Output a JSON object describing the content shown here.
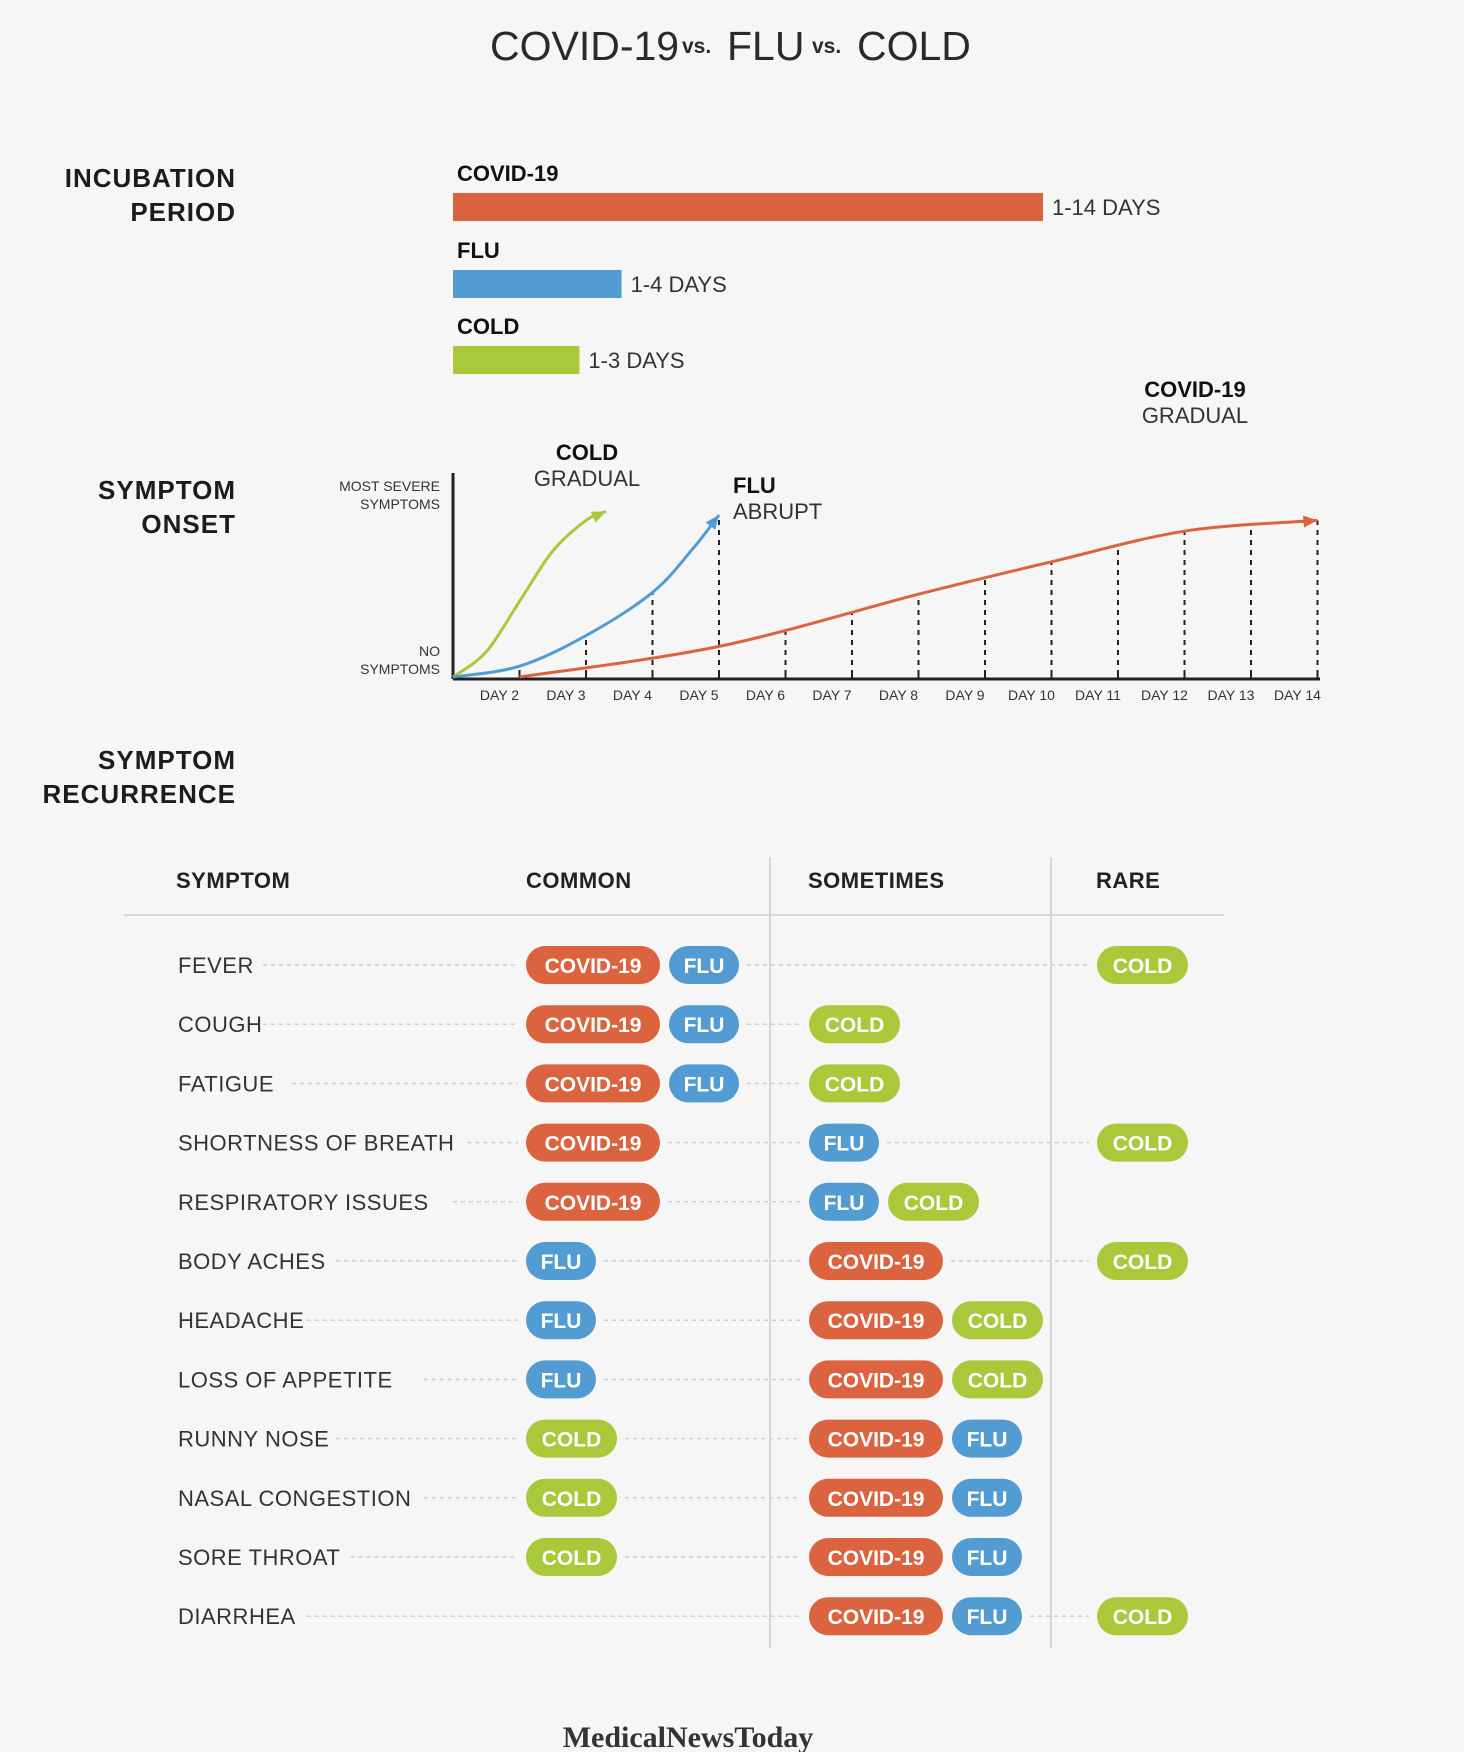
{
  "title": {
    "part1": "COVID-19",
    "vs1": "vs.",
    "part2": "FLU",
    "vs2": "vs.",
    "part3": "COLD"
  },
  "colors": {
    "covid": "#db6340",
    "flu": "#539cd3",
    "cold": "#a9c93b"
  },
  "sections": {
    "incubation": [
      "INCUBATION",
      "PERIOD"
    ],
    "onset": [
      "SYMPTOM",
      "ONSET"
    ],
    "recurrence": [
      "SYMPTOM",
      "RECURRENCE"
    ]
  },
  "chart_data": [
    {
      "type": "bar",
      "orientation": "horizontal",
      "categories": [
        "COVID-19",
        "FLU",
        "COLD"
      ],
      "values": [
        14,
        4,
        3
      ],
      "value_labels": [
        "1-14 DAYS",
        "1-4 DAYS",
        "1-3 DAYS"
      ],
      "colors": [
        "#db6340",
        "#539cd3",
        "#a9c93b"
      ]
    },
    {
      "type": "line",
      "x_ticks": [
        "DAY 2",
        "DAY 3",
        "DAY 4",
        "DAY 5",
        "DAY 6",
        "DAY 7",
        "DAY 8",
        "DAY 9",
        "DAY 10",
        "DAY 11",
        "DAY 12",
        "DAY 13",
        "DAY 14"
      ],
      "y_top_label": [
        "MOST SEVERE",
        "SYMPTOMS"
      ],
      "y_bottom_label": [
        "NO",
        "SYMPTOMS"
      ],
      "ylim": [
        0,
        1
      ],
      "series": [
        {
          "name": "COLD",
          "subtitle": "GRADUAL",
          "color": "#a9c93b",
          "x": [
            1,
            1.5,
            2,
            2.5,
            3,
            3.3
          ],
          "y": [
            0,
            0.14,
            0.42,
            0.7,
            0.87,
            0.92
          ]
        },
        {
          "name": "FLU",
          "subtitle": "ABRUPT",
          "color": "#539cd3",
          "x": [
            1,
            2,
            3,
            4,
            4.6,
            5
          ],
          "y": [
            0,
            0.06,
            0.23,
            0.47,
            0.71,
            0.9
          ]
        },
        {
          "name": "COVID-19",
          "subtitle": "GRADUAL",
          "color": "#db6340",
          "x": [
            2,
            5,
            8,
            10,
            12,
            14
          ],
          "y": [
            0,
            0.17,
            0.46,
            0.64,
            0.81,
            0.87
          ]
        }
      ]
    }
  ],
  "table": {
    "headers": [
      "SYMPTOM",
      "COMMON",
      "SOMETIMES",
      "RARE"
    ],
    "rows": [
      {
        "symptom": "FEVER",
        "common": [
          "COVID-19",
          "FLU"
        ],
        "sometimes": [],
        "rare": [
          "COLD"
        ]
      },
      {
        "symptom": "COUGH",
        "common": [
          "COVID-19",
          "FLU"
        ],
        "sometimes": [
          "COLD"
        ],
        "rare": []
      },
      {
        "symptom": "FATIGUE",
        "common": [
          "COVID-19",
          "FLU"
        ],
        "sometimes": [
          "COLD"
        ],
        "rare": []
      },
      {
        "symptom": "SHORTNESS OF BREATH",
        "common": [
          "COVID-19"
        ],
        "sometimes": [
          "FLU"
        ],
        "rare": [
          "COLD"
        ]
      },
      {
        "symptom": "RESPIRATORY ISSUES",
        "common": [
          "COVID-19"
        ],
        "sometimes": [
          "FLU",
          "COLD"
        ],
        "rare": []
      },
      {
        "symptom": "BODY ACHES",
        "common": [
          "FLU"
        ],
        "sometimes": [
          "COVID-19"
        ],
        "rare": [
          "COLD"
        ]
      },
      {
        "symptom": "HEADACHE",
        "common": [
          "FLU"
        ],
        "sometimes": [
          "COVID-19",
          "COLD"
        ],
        "rare": []
      },
      {
        "symptom": "LOSS OF APPETITE",
        "common": [
          "FLU"
        ],
        "sometimes": [
          "COVID-19",
          "COLD"
        ],
        "rare": []
      },
      {
        "symptom": "RUNNY NOSE",
        "common": [
          "COLD"
        ],
        "sometimes": [
          "COVID-19",
          "FLU"
        ],
        "rare": []
      },
      {
        "symptom": "NASAL CONGESTION",
        "common": [
          "COLD"
        ],
        "sometimes": [
          "COVID-19",
          "FLU"
        ],
        "rare": []
      },
      {
        "symptom": "SORE THROAT",
        "common": [
          "COLD"
        ],
        "sometimes": [
          "COVID-19",
          "FLU"
        ],
        "rare": []
      },
      {
        "symptom": "DIARRHEA",
        "common": [],
        "sometimes": [
          "COVID-19",
          "FLU"
        ],
        "rare": [
          "COLD"
        ]
      }
    ]
  },
  "footer": {
    "brand": "MedicalNewsToday"
  }
}
